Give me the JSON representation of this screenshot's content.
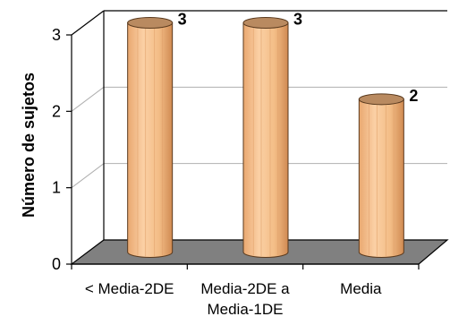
{
  "chart_data": {
    "type": "bar",
    "categories": [
      "< Media-2DE",
      "Media-2DE a\nMedia-1DE",
      "Media"
    ],
    "values": [
      3,
      3,
      2
    ],
    "data_labels": [
      "3",
      "3",
      "2"
    ],
    "title": "",
    "xlabel": "",
    "ylabel": "Número de sujetos",
    "ylim": [
      0,
      3
    ],
    "yticks": [
      "0",
      "1",
      "2",
      "3"
    ],
    "grid": true,
    "style": "3d-cylinder",
    "colors": {
      "bar": "#f6c18c",
      "bar_dark": "#d8955c",
      "bar_top": "#b98a60",
      "floor": "#808080"
    }
  }
}
